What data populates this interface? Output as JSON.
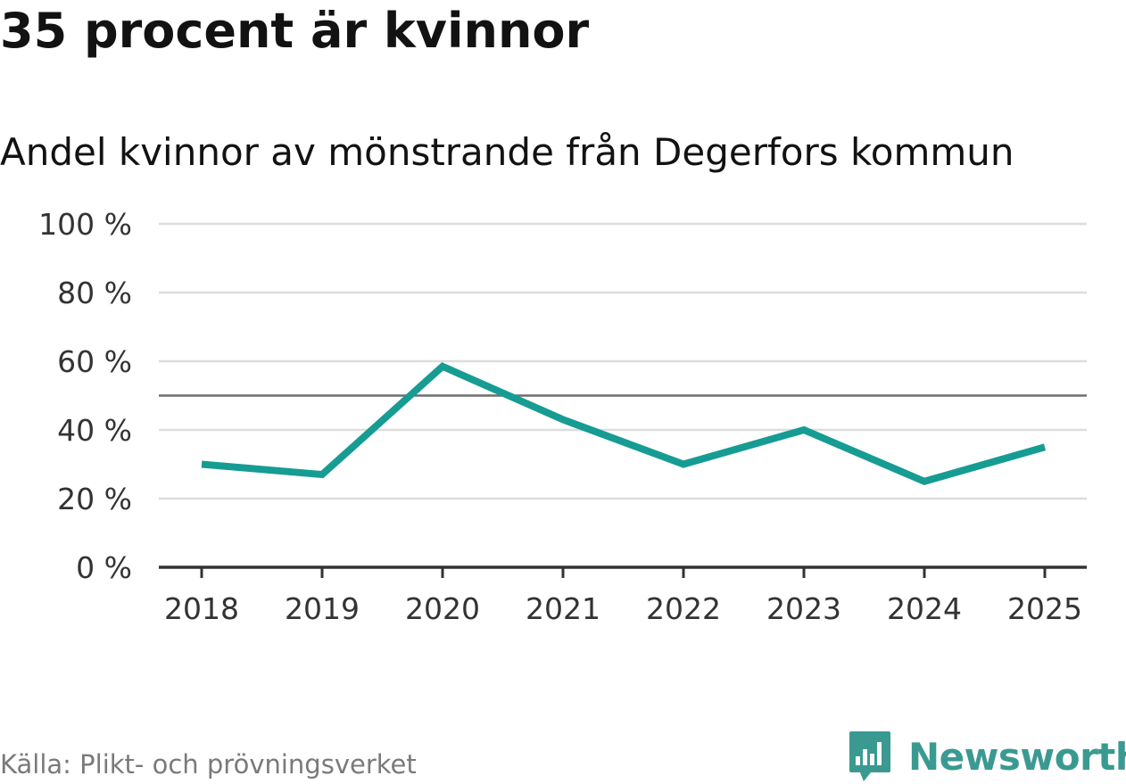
{
  "header": {
    "title": "35 procent är kvinnor",
    "subtitle": "Andel kvinnor av mönstrande från Degerfors kommun"
  },
  "footer": {
    "source": "Källa: Plikt- och prövningsverket",
    "brand": "Newsworthy"
  },
  "colors": {
    "line": "#169c93",
    "brand": "#3a9a92",
    "gridline": "#dddddd",
    "reference_line": "#6f6f6f",
    "axis": "#333333"
  },
  "chart_data": {
    "type": "line",
    "title": "35 procent är kvinnor",
    "subtitle": "Andel kvinnor av mönstrande från Degerfors kommun",
    "xlabel": "",
    "ylabel": "",
    "categories": [
      "2018",
      "2019",
      "2020",
      "2021",
      "2022",
      "2023",
      "2024",
      "2025"
    ],
    "series": [
      {
        "name": "Andel kvinnor",
        "values": [
          30,
          27,
          58.5,
          43,
          30,
          40,
          25,
          35
        ]
      }
    ],
    "ylim": [
      0,
      100
    ],
    "yticks": [
      0,
      20,
      40,
      60,
      80,
      100
    ],
    "ytick_labels": [
      "0 %",
      "20 %",
      "40 %",
      "60 %",
      "80 %",
      "100 %"
    ],
    "reference_line": 50,
    "grid": true
  }
}
